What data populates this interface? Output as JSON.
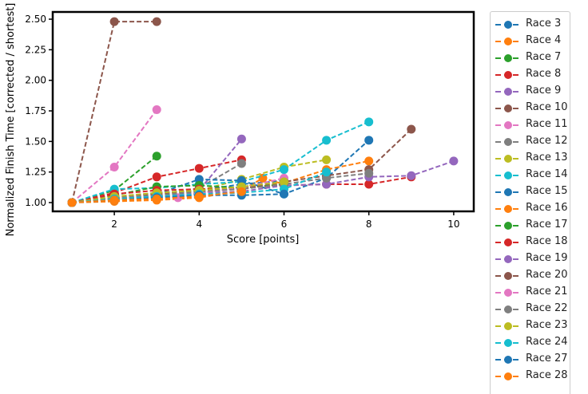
{
  "chart_data": {
    "type": "line",
    "title": "",
    "xlabel": "Score [points]",
    "ylabel": "Normalized Finish Time [corrected / shortest]",
    "xlim": [
      0.6,
      10.4
    ],
    "ylim": [
      0.92,
      2.56
    ],
    "xticks": [
      2,
      4,
      6,
      8,
      10
    ],
    "yticks": [
      1.0,
      1.25,
      1.5,
      1.75,
      2.0,
      2.25,
      2.5
    ],
    "ytick_labels": [
      "1.00",
      "1.25",
      "1.50",
      "1.75",
      "2.00",
      "2.25",
      "2.50"
    ],
    "grid": false,
    "legend_position": "outside right",
    "line_style": "dashed with circle markers",
    "series": [
      {
        "name": "Race 3",
        "color": "#1f77b4",
        "x": [
          1,
          2,
          3,
          4,
          5,
          6
        ],
        "y": [
          1.0,
          1.04,
          1.08,
          1.1,
          1.15,
          1.18
        ]
      },
      {
        "name": "Race 4",
        "color": "#ff7f0e",
        "x": [
          1,
          2,
          3,
          4,
          5,
          5.5,
          6
        ],
        "y": [
          1.0,
          1.01,
          1.02,
          1.04,
          1.1,
          1.2,
          1.15
        ]
      },
      {
        "name": "Race 7",
        "color": "#2ca02c",
        "x": [
          1,
          2,
          3
        ],
        "y": [
          1.0,
          1.1,
          1.38
        ]
      },
      {
        "name": "Race 8",
        "color": "#d62728",
        "x": [
          1,
          2,
          3,
          4,
          5
        ],
        "y": [
          1.0,
          1.08,
          1.21,
          1.28,
          1.35
        ]
      },
      {
        "name": "Race 9",
        "color": "#9467bd",
        "x": [
          1,
          2,
          3,
          4,
          5
        ],
        "y": [
          1.0,
          1.03,
          1.05,
          1.1,
          1.52
        ]
      },
      {
        "name": "Race 10",
        "color": "#8c564b",
        "x": [
          1,
          2,
          3
        ],
        "y": [
          1.0,
          2.48,
          2.48
        ]
      },
      {
        "name": "Race 11",
        "color": "#e377c2",
        "x": [
          1,
          2,
          3
        ],
        "y": [
          1.0,
          1.29,
          1.76
        ]
      },
      {
        "name": "Race 12",
        "color": "#7f7f7f",
        "x": [
          1,
          2,
          3,
          4,
          5
        ],
        "y": [
          1.0,
          1.03,
          1.06,
          1.12,
          1.32
        ]
      },
      {
        "name": "Race 13",
        "color": "#bcbd22",
        "x": [
          1,
          2,
          3,
          4,
          5,
          6,
          7
        ],
        "y": [
          1.0,
          1.04,
          1.07,
          1.1,
          1.19,
          1.29,
          1.35
        ]
      },
      {
        "name": "Race 14",
        "color": "#17becf",
        "x": [
          1,
          2,
          3,
          4,
          5,
          6,
          7,
          8
        ],
        "y": [
          1.0,
          1.11,
          1.12,
          1.15,
          1.17,
          1.27,
          1.51,
          1.66
        ]
      },
      {
        "name": "Race 15",
        "color": "#1f77b4",
        "x": [
          1,
          2,
          3,
          4,
          5,
          6,
          7,
          8
        ],
        "y": [
          1.0,
          1.05,
          1.07,
          1.19,
          1.18,
          1.07,
          1.2,
          1.51
        ]
      },
      {
        "name": "Race 16",
        "color": "#ff7f0e",
        "x": [
          1,
          2,
          3,
          4,
          5,
          6,
          7,
          8
        ],
        "y": [
          1.0,
          1.05,
          1.06,
          1.08,
          1.12,
          1.16,
          1.27,
          1.34
        ]
      },
      {
        "name": "Race 17",
        "color": "#2ca02c",
        "x": [
          1,
          2,
          3,
          4,
          5,
          6
        ],
        "y": [
          1.0,
          1.06,
          1.13,
          1.14,
          1.12,
          1.15
        ]
      },
      {
        "name": "Race 18",
        "color": "#d62728",
        "x": [
          1,
          2,
          3,
          4,
          5,
          6,
          7,
          8,
          9
        ],
        "y": [
          1.0,
          1.07,
          1.1,
          1.11,
          1.12,
          1.14,
          1.15,
          1.15,
          1.21
        ]
      },
      {
        "name": "Race 19",
        "color": "#9467bd",
        "x": [
          1,
          2,
          3,
          4,
          5,
          6,
          7,
          8,
          9,
          10
        ],
        "y": [
          1.0,
          1.03,
          1.05,
          1.08,
          1.09,
          1.14,
          1.15,
          1.21,
          1.22,
          1.34
        ]
      },
      {
        "name": "Race 20",
        "color": "#8c564b",
        "x": [
          1,
          2,
          3,
          4,
          5,
          6,
          7,
          8,
          9
        ],
        "y": [
          1.0,
          1.05,
          1.07,
          1.1,
          1.12,
          1.17,
          1.22,
          1.27,
          1.6
        ]
      },
      {
        "name": "Race 21",
        "color": "#e377c2",
        "x": [
          1,
          2,
          3,
          3.5,
          4,
          5,
          6
        ],
        "y": [
          1.0,
          1.04,
          1.06,
          1.04,
          1.08,
          1.12,
          1.2
        ]
      },
      {
        "name": "Race 22",
        "color": "#7f7f7f",
        "x": [
          1,
          2,
          3,
          4,
          5,
          6,
          7,
          8
        ],
        "y": [
          1.0,
          1.04,
          1.06,
          1.09,
          1.11,
          1.15,
          1.2,
          1.24
        ]
      },
      {
        "name": "Race 23",
        "color": "#bcbd22",
        "x": [
          1,
          2,
          3,
          4,
          5,
          6
        ],
        "y": [
          1.0,
          1.05,
          1.08,
          1.1,
          1.13,
          1.17
        ]
      },
      {
        "name": "Race 24",
        "color": "#17becf",
        "x": [
          1,
          2,
          3,
          4,
          5,
          6,
          7
        ],
        "y": [
          1.0,
          1.03,
          1.05,
          1.07,
          1.08,
          1.11,
          1.25
        ]
      },
      {
        "name": "Race 27",
        "color": "#1f77b4",
        "x": [
          1,
          2,
          3,
          4,
          5,
          6
        ],
        "y": [
          1.0,
          1.02,
          1.04,
          1.06,
          1.06,
          1.07
        ]
      },
      {
        "name": "Race 28",
        "color": "#ff7f0e",
        "x": [
          1,
          2,
          3,
          4,
          5
        ],
        "y": [
          1.0,
          1.02,
          1.03,
          1.05,
          1.09
        ]
      }
    ]
  }
}
